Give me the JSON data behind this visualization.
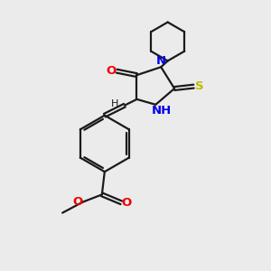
{
  "background_color": "#ebebeb",
  "bond_color": "#1a1a1a",
  "n_color": "#0000ee",
  "o_color": "#ee0000",
  "s_color": "#bbbb00",
  "line_width": 1.6,
  "figsize": [
    3.0,
    3.0
  ],
  "dpi": 100,
  "xlim": [
    0,
    10
  ],
  "ylim": [
    0,
    10
  ]
}
